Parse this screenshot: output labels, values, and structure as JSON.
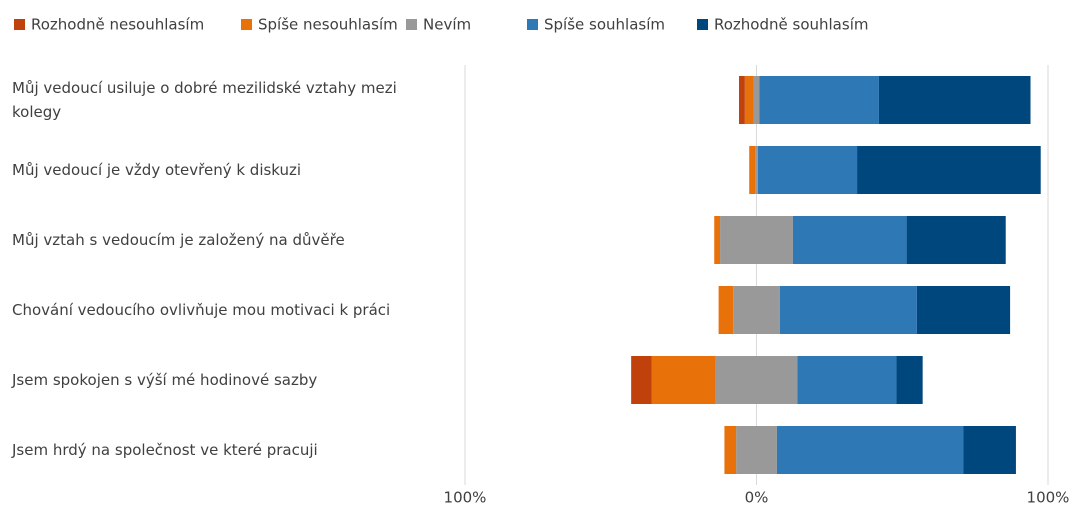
{
  "chart_data": {
    "type": "diverging_bar",
    "categories": [
      "Můj vedoucí usiluje o dobré mezilidské vztahy mezi kolegy",
      "Můj vedoucí je vždy otevřený k diskuzi",
      "Můj vztah s vedoucím je založený na důvěře",
      "Chování vedoucího ovlivňuje mou motivaci k práci",
      "Jsem spokojen s výší mé hodinové sazby",
      "Jsem hrdý na společnost ve které pracuji"
    ],
    "series": [
      {
        "name": "Rozhodně nesouhlasím",
        "color": "#c0410c",
        "values": [
          2,
          0,
          0,
          0,
          7,
          0
        ]
      },
      {
        "name": "Spíše nesouhlasím",
        "color": "#e8710a",
        "values": [
          3,
          2,
          2,
          5,
          22,
          4
        ]
      },
      {
        "name": "Nevím",
        "color": "#999999",
        "values": [
          2,
          1,
          25,
          16,
          28,
          14
        ]
      },
      {
        "name": "Spíše souhlasím",
        "color": "#2e78b5",
        "values": [
          41,
          34,
          39,
          47,
          34,
          64
        ]
      },
      {
        "name": "Rozhodně souhlasím",
        "color": "#00477e",
        "values": [
          52,
          63,
          34,
          32,
          9,
          18
        ]
      }
    ],
    "xlim": [
      -100,
      100
    ],
    "xticks": [
      {
        "value": -100,
        "label": "100%"
      },
      {
        "value": 0,
        "label": "0%"
      },
      {
        "value": 100,
        "label": "100%"
      }
    ],
    "grid": true
  }
}
